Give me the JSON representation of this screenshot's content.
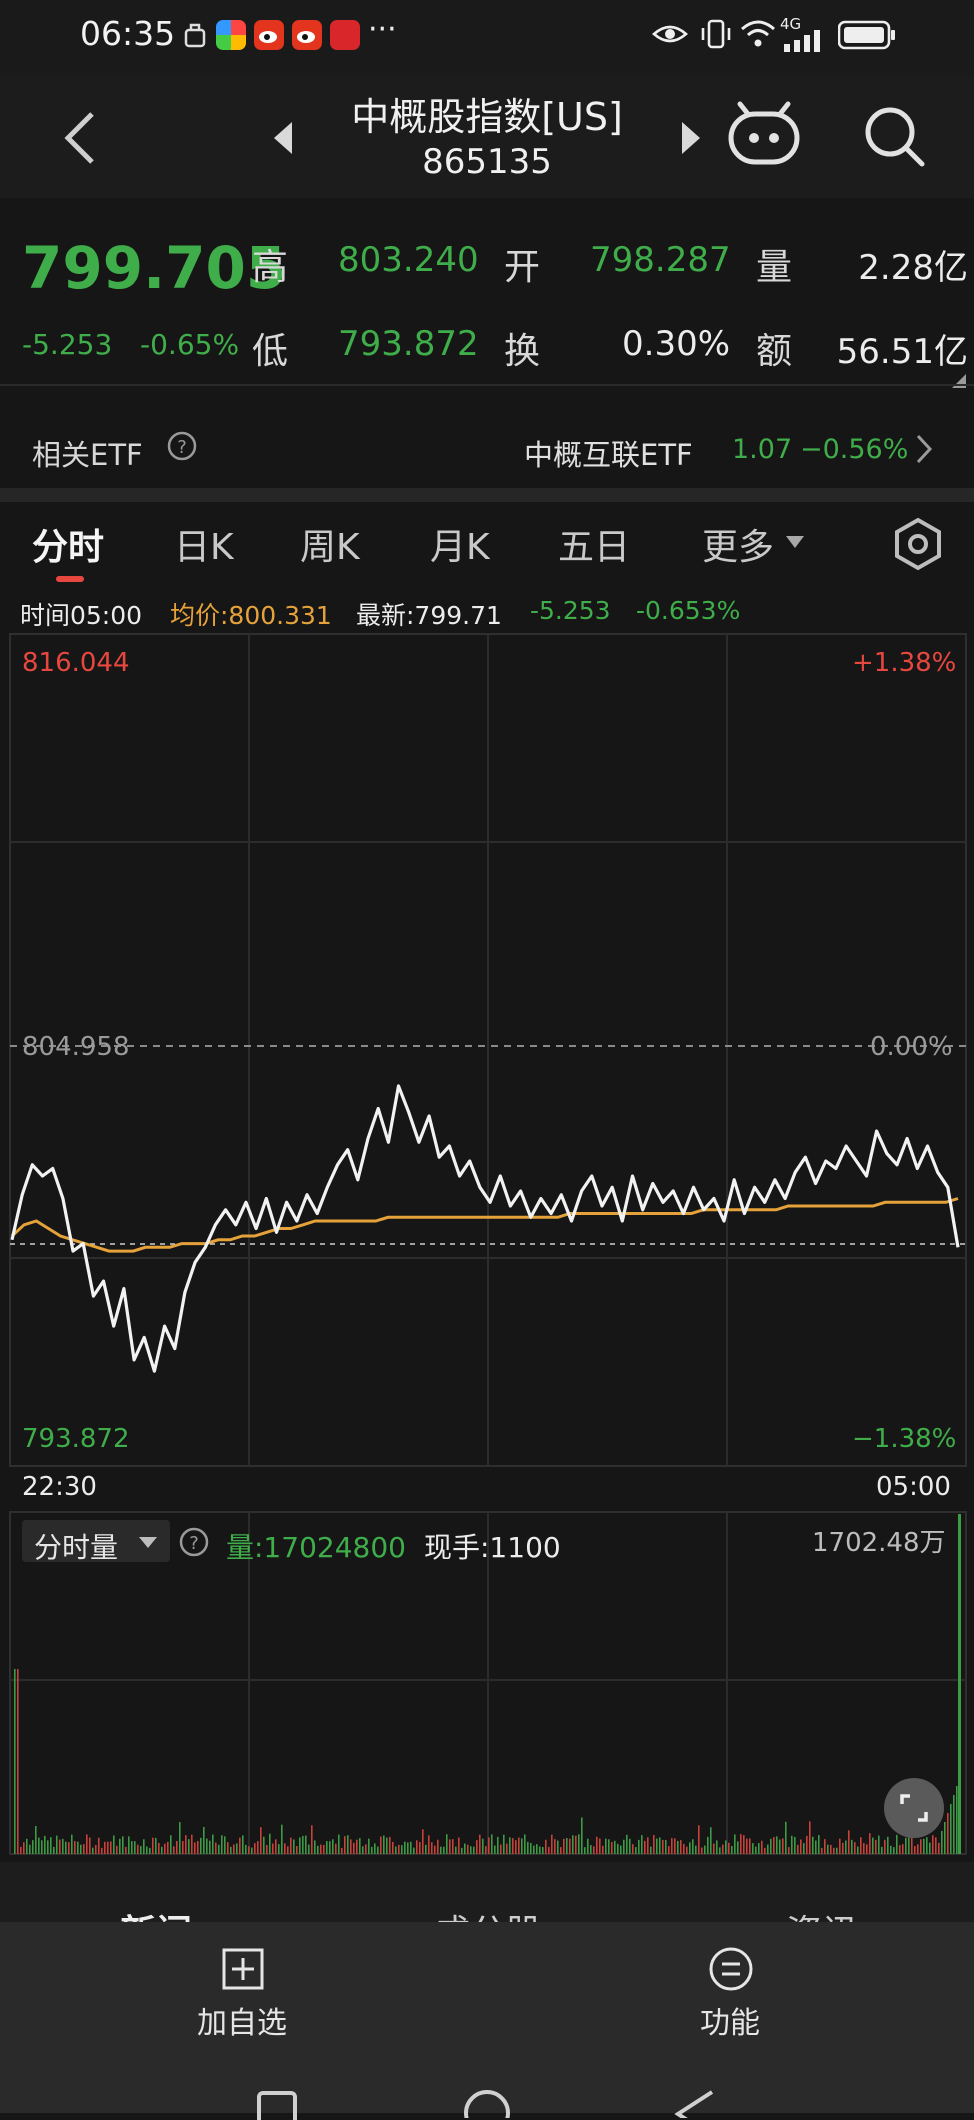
{
  "status_bar": {
    "time": "06:35",
    "network": "4G",
    "more": "···"
  },
  "header": {
    "title": "中概股指数[US]",
    "code": "865135"
  },
  "quote": {
    "price": "799.705",
    "change": "-5.253",
    "change_pct": "-0.65%",
    "high_label": "高",
    "high": "803.240",
    "low_label": "低",
    "low": "793.872",
    "open_label": "开",
    "open": "798.287",
    "turnover_label": "换",
    "turnover": "0.30%",
    "volume_label": "量",
    "volume": "2.28亿",
    "amount_label": "额",
    "amount": "56.51亿"
  },
  "etf": {
    "label": "相关ETF",
    "name": "中概互联ETF",
    "price": "1.07",
    "change": "−0.56%"
  },
  "tabs": [
    "分时",
    "日K",
    "周K",
    "月K",
    "五日",
    "更多"
  ],
  "chart_info": {
    "time": "时间05:00",
    "avg": "均价:800.331",
    "latest": "最新:799.71",
    "change": "-5.253",
    "change_pct": "-0.653%"
  },
  "chart_data": {
    "type": "line",
    "y_top": "816.044",
    "y_mid": "804.958",
    "y_bottom": "793.872",
    "pct_top": "+1.38%",
    "pct_mid": "0.00%",
    "pct_bottom": "−1.38%",
    "x_start": "22:30",
    "x_end": "05:00",
    "ylim": [
      793.872,
      816.044
    ],
    "prev_close": 804.958,
    "series": [
      {
        "values": [
          799.9,
          801.1,
          801.9,
          801.6,
          801.8,
          801.0,
          799.6,
          799.8,
          798.4,
          798.8,
          797.6,
          798.6,
          796.7,
          797.3,
          796.4,
          797.6,
          797.0,
          798.5,
          799.3,
          799.7,
          800.3,
          800.7,
          800.3,
          800.9,
          800.2,
          801.0,
          800.1,
          800.9,
          800.4,
          801.1,
          800.6,
          801.3,
          801.9,
          802.3,
          801.5,
          802.6,
          803.4,
          802.5,
          804.0,
          803.3,
          802.5,
          803.2,
          802.1,
          802.4,
          801.6,
          802.0,
          801.3,
          800.9,
          801.6,
          800.8,
          801.2,
          800.5,
          801.0,
          800.6,
          801.1,
          800.4,
          801.2,
          801.6,
          800.8,
          801.3,
          800.4,
          801.6,
          800.7,
          801.4,
          800.9,
          801.2,
          800.6,
          801.3,
          800.7,
          801.0,
          800.4,
          801.5,
          800.6,
          801.3,
          800.9,
          801.5,
          801.0,
          801.7,
          802.1,
          801.4,
          802.0,
          801.8,
          802.4,
          802.0,
          801.6,
          802.8,
          802.2,
          801.9,
          802.6,
          801.8,
          802.4,
          801.7,
          801.3,
          799.7
        ],
        "min_marker": 796.4
      },
      {
        "name": "均价",
        "values": [
          800.0,
          800.3,
          800.4,
          800.2,
          800.0,
          799.9,
          799.8,
          799.7,
          799.6,
          799.6,
          799.6,
          799.7,
          799.7,
          799.7,
          799.8,
          799.8,
          799.8,
          799.9,
          799.9,
          800.0,
          800.0,
          800.1,
          800.2,
          800.2,
          800.3,
          800.4,
          800.4,
          800.4,
          800.4,
          800.4,
          800.4,
          800.5,
          800.5,
          800.5,
          800.5,
          800.5,
          800.5,
          800.5,
          800.5,
          800.5,
          800.5,
          800.5,
          800.5,
          800.5,
          800.5,
          800.5,
          800.6,
          800.6,
          800.6,
          800.6,
          800.6,
          800.6,
          800.6,
          800.6,
          800.6,
          800.6,
          800.6,
          800.7,
          800.7,
          800.7,
          800.7,
          800.7,
          800.7,
          800.7,
          800.8,
          800.8,
          800.8,
          800.8,
          800.8,
          800.8,
          800.8,
          800.8,
          800.9,
          800.9,
          800.9,
          800.9,
          800.9,
          800.9,
          801.0
        ]
      }
    ]
  },
  "volume": {
    "label": "分时量",
    "vol": "量:17024800",
    "now": "现手:1100",
    "max": "1702.48万"
  },
  "news_tabs": [
    "新闻",
    "成分股",
    "资讯"
  ],
  "bottom": {
    "add": "加自选",
    "func": "功能"
  }
}
